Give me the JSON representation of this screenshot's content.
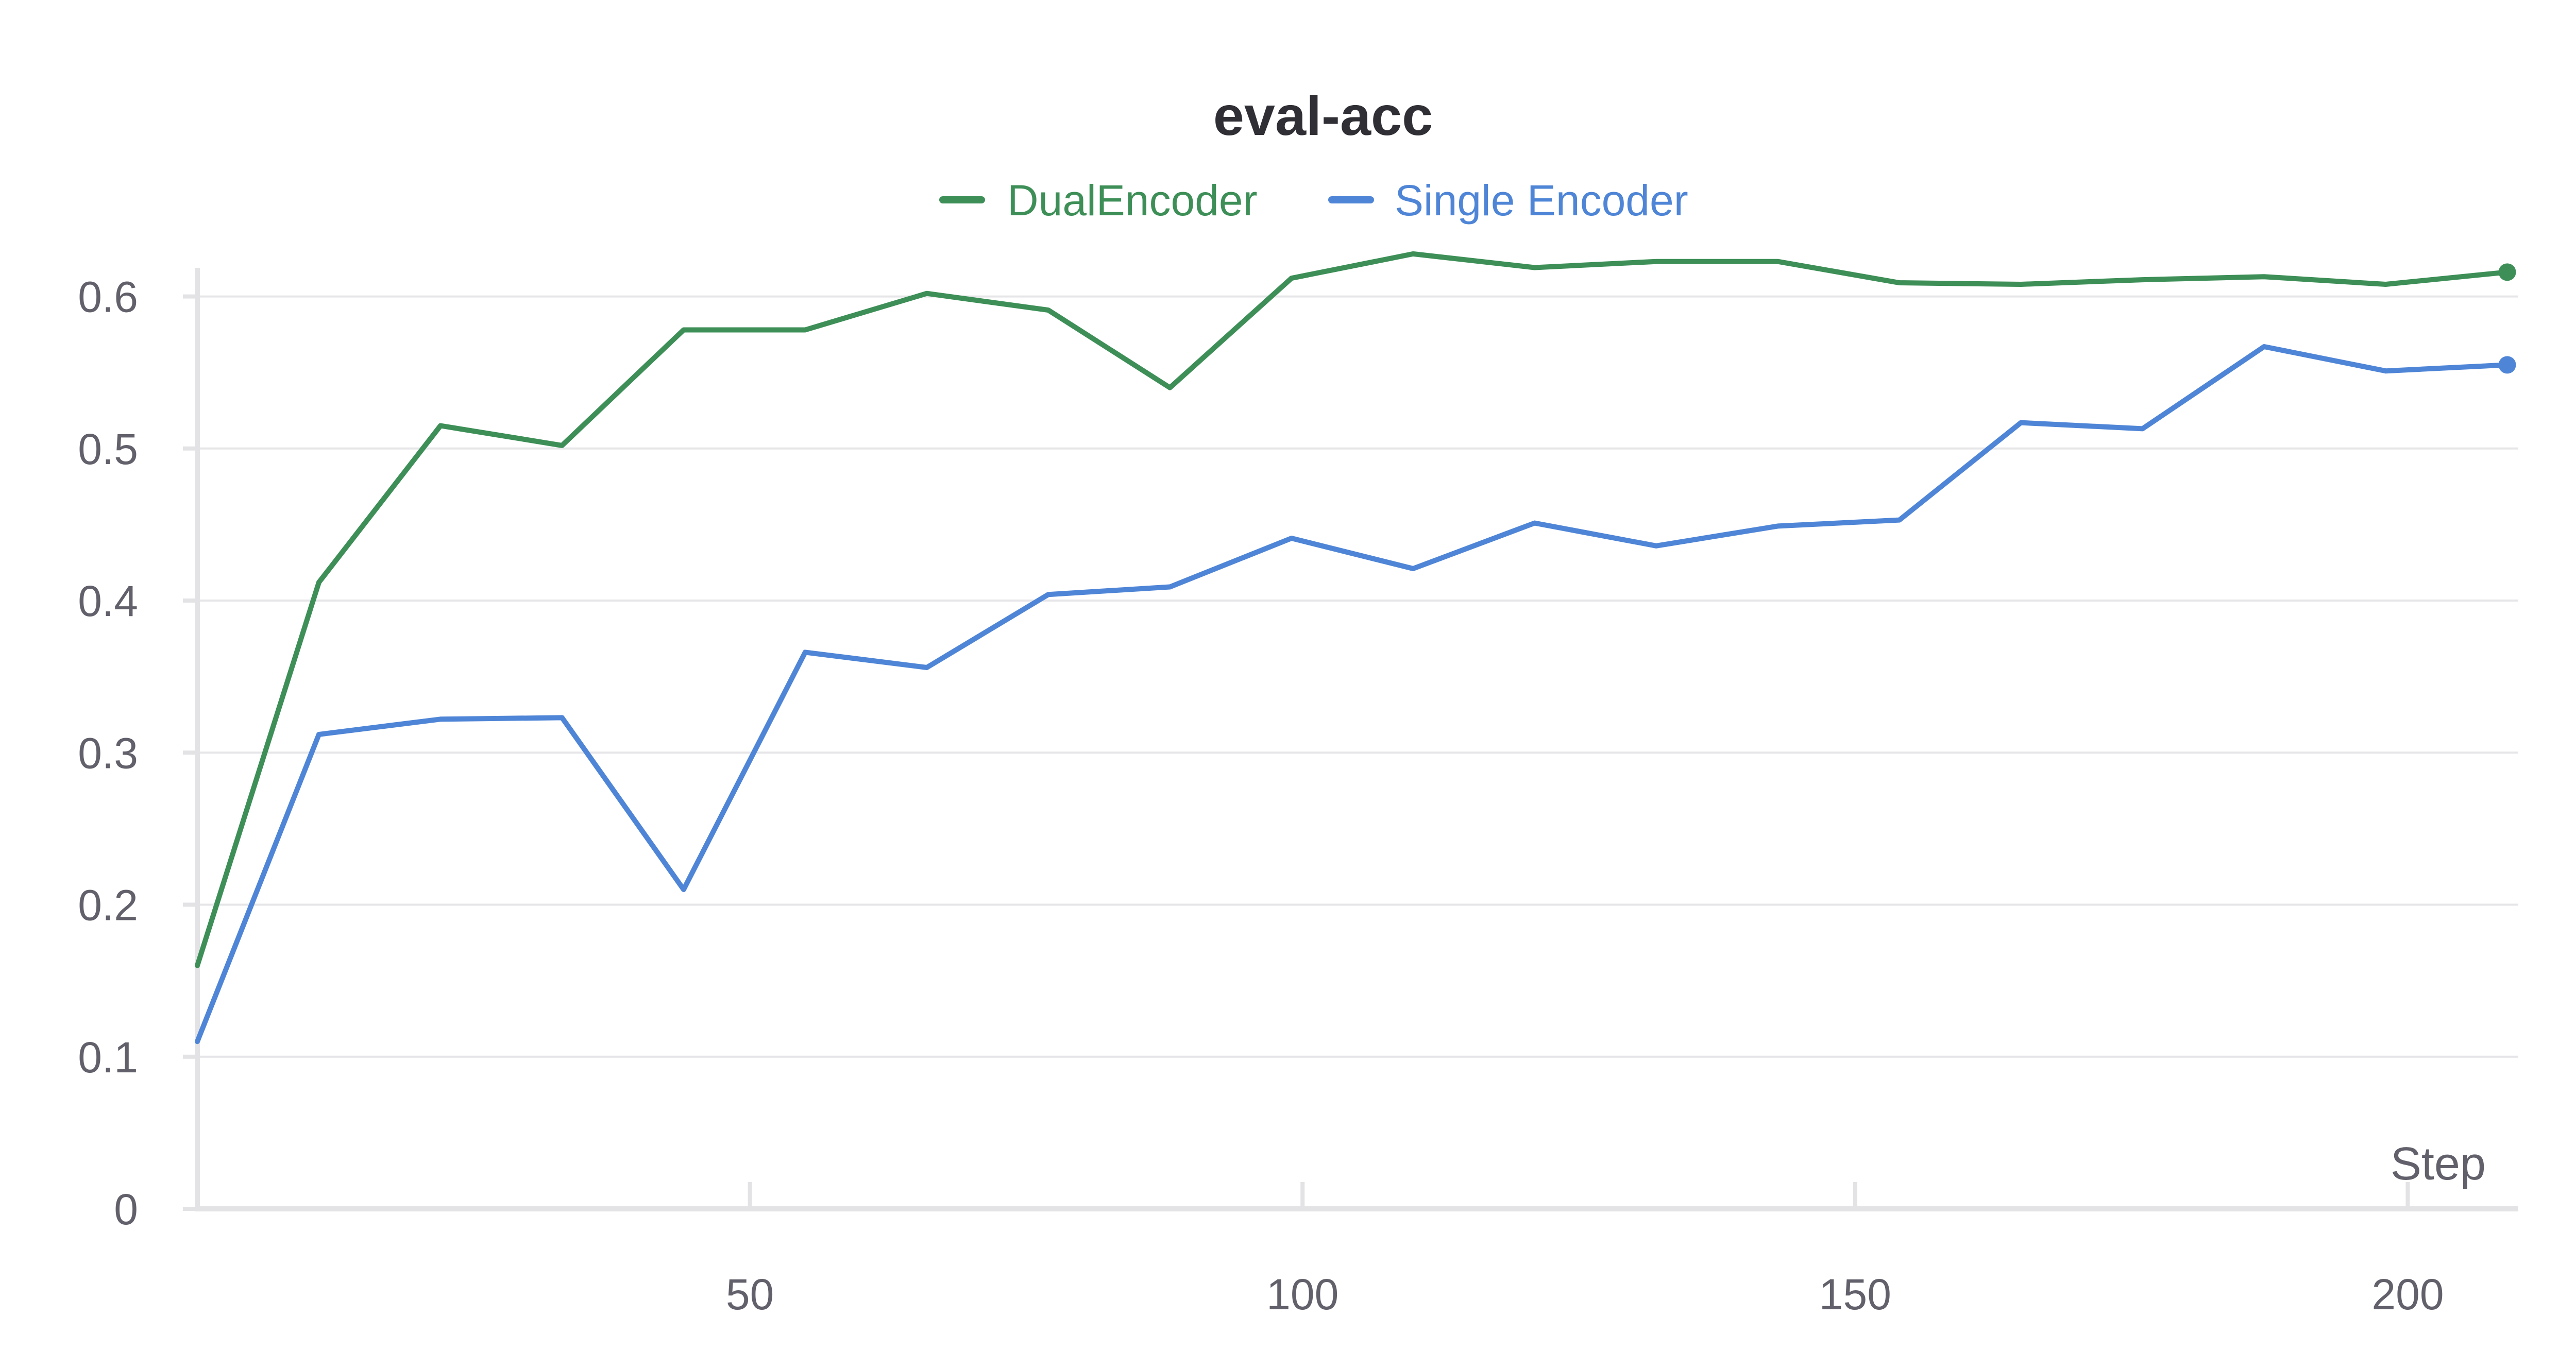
{
  "chart_data": {
    "type": "line",
    "title": "eval-acc",
    "xlabel": "Step",
    "ylabel": "",
    "xlim": [
      0,
      210
    ],
    "ylim": [
      0,
      0.63
    ],
    "xticks": [
      50,
      100,
      150,
      200
    ],
    "xtick_labels": [
      "50",
      "100",
      "150",
      "200"
    ],
    "yticks": [
      0,
      0.1,
      0.2,
      0.3,
      0.4,
      0.5,
      0.6
    ],
    "ytick_labels": [
      "0",
      "0.1",
      "0.2",
      "0.3",
      "0.4",
      "0.5",
      "0.6"
    ],
    "grid": true,
    "legend_position": "top-center",
    "series": [
      {
        "name": "DualEncoder",
        "color": "#3d8f57",
        "x": [
          0,
          11,
          22,
          33,
          44,
          55,
          66,
          77,
          88,
          99,
          110,
          121,
          132,
          143,
          154,
          165,
          176,
          187,
          198,
          209
        ],
        "y": [
          0.16,
          0.412,
          0.515,
          0.502,
          0.578,
          0.578,
          0.602,
          0.591,
          0.54,
          0.612,
          0.628,
          0.619,
          0.623,
          0.623,
          0.609,
          0.608,
          0.611,
          0.613,
          0.608,
          0.616
        ]
      },
      {
        "name": "Single Encoder",
        "color": "#4f85d6",
        "x": [
          0,
          11,
          22,
          33,
          44,
          55,
          66,
          77,
          88,
          99,
          110,
          121,
          132,
          143,
          154,
          165,
          176,
          187,
          198,
          209
        ],
        "y": [
          0.11,
          0.312,
          0.322,
          0.323,
          0.21,
          0.366,
          0.356,
          0.404,
          0.409,
          0.441,
          0.421,
          0.451,
          0.436,
          0.449,
          0.453,
          0.517,
          0.513,
          0.567,
          0.551,
          0.555
        ]
      }
    ]
  }
}
